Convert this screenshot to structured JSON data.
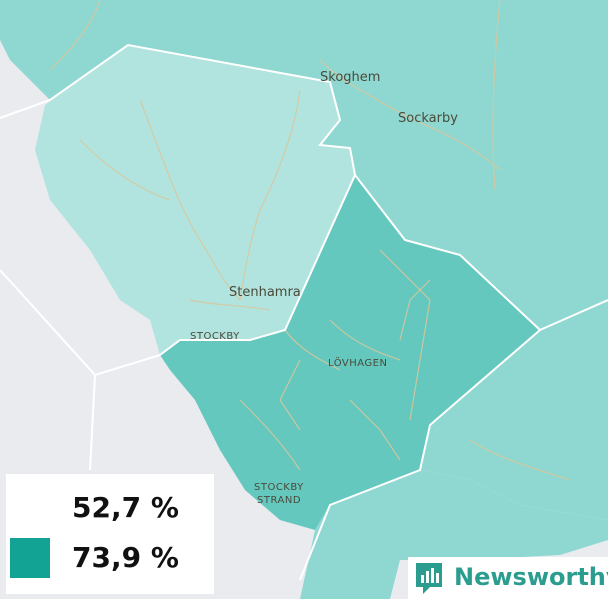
{
  "map": {
    "places": {
      "skoghem": "Skoghem",
      "sockarby": "Sockarby",
      "stenhamra": "Stenhamra",
      "stockby": "STOCKBY",
      "lovhagen": "LÖVHAGEN",
      "stockby_strand_line1": "STOCKBY",
      "stockby_strand_line2": "STRAND"
    },
    "colors": {
      "water": "#e9ebef",
      "region_light": "#b1e4df",
      "region_mid": "#8fd8d2",
      "region_dark": "#65c8bf",
      "border": "#ffffff",
      "roads": "#d9c79a"
    }
  },
  "legend": {
    "items": [
      {
        "label": "52,7 %",
        "color": "#ffffff"
      },
      {
        "label": "73,9 %",
        "color": "#12a394"
      }
    ]
  },
  "brand": {
    "name": "Newsworthy",
    "icon": "newsworthy-logo-icon",
    "color": "#2a9d8f"
  }
}
